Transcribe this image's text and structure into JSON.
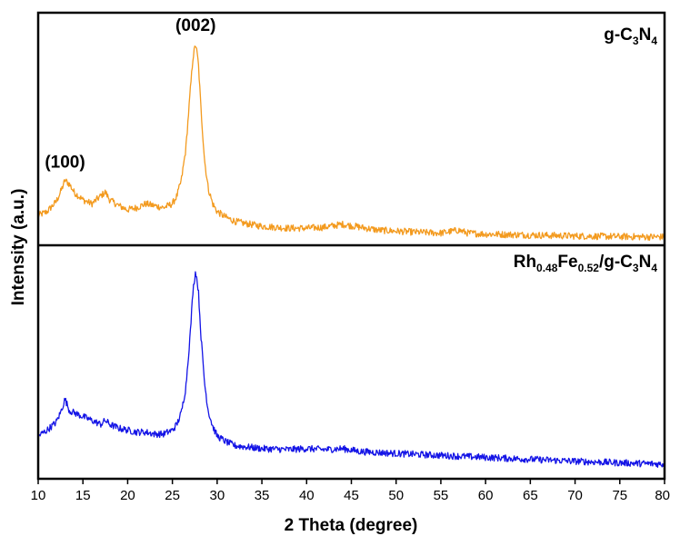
{
  "chart_data": {
    "type": "line",
    "xlabel": "2 Theta (degree)",
    "ylabel": "Intensity (a.u.)",
    "xlim": [
      10,
      80
    ],
    "xticks": [
      10,
      15,
      20,
      25,
      30,
      35,
      40,
      45,
      50,
      55,
      60,
      65,
      70,
      75,
      80
    ],
    "x_tick_labels": [
      "10",
      "15",
      "20",
      "25",
      "30",
      "35",
      "40",
      "45",
      "50",
      "55",
      "60",
      "65",
      "70",
      "75",
      "80"
    ],
    "panels": 2,
    "series": [
      {
        "name_parts": [
          {
            "text": "g-C",
            "sub": false
          },
          {
            "text": "3",
            "sub": true
          },
          {
            "text": "N",
            "sub": false
          },
          {
            "text": "4",
            "sub": true
          }
        ],
        "color": "#F39A1E",
        "panel": "top",
        "x": [
          10,
          11,
          12,
          12.5,
          13,
          13.5,
          14,
          15,
          16,
          17,
          17.5,
          18,
          19,
          20,
          21,
          22,
          23,
          24,
          25,
          25.5,
          26,
          26.5,
          27,
          27.3,
          27.6,
          27.9,
          28.2,
          28.6,
          29,
          29.5,
          30,
          31,
          32,
          33,
          35,
          38,
          40,
          42,
          44,
          46,
          48,
          50,
          52,
          55,
          57,
          58,
          60,
          65,
          70,
          75,
          80
        ],
        "y": [
          0.12,
          0.14,
          0.19,
          0.24,
          0.3,
          0.28,
          0.24,
          0.2,
          0.18,
          0.22,
          0.24,
          0.2,
          0.17,
          0.15,
          0.16,
          0.18,
          0.17,
          0.16,
          0.18,
          0.22,
          0.3,
          0.46,
          0.76,
          0.93,
          1.0,
          0.9,
          0.66,
          0.4,
          0.26,
          0.18,
          0.14,
          0.11,
          0.09,
          0.08,
          0.065,
          0.055,
          0.055,
          0.06,
          0.075,
          0.06,
          0.045,
          0.04,
          0.035,
          0.03,
          0.045,
          0.03,
          0.025,
          0.02,
          0.015,
          0.012,
          0.01
        ],
        "peak_labels": [
          {
            "text": "(100)",
            "x": 13
          },
          {
            "text": "(002)",
            "x": 27.6
          }
        ]
      },
      {
        "name_parts": [
          {
            "text": "Rh",
            "sub": false
          },
          {
            "text": "0.48",
            "sub": true
          },
          {
            "text": "Fe",
            "sub": false
          },
          {
            "text": "0.52",
            "sub": true
          },
          {
            "text": "/g-C",
            "sub": false
          },
          {
            "text": "3",
            "sub": true
          },
          {
            "text": "N",
            "sub": false
          },
          {
            "text": "4",
            "sub": true
          }
        ],
        "color": "#1414E6",
        "panel": "bottom",
        "x": [
          10,
          11,
          12,
          12.5,
          13,
          13.5,
          14,
          15,
          16,
          17,
          17.5,
          18,
          19,
          20,
          21,
          22,
          23,
          24,
          25,
          25.5,
          26,
          26.5,
          27,
          27.3,
          27.6,
          27.9,
          28.2,
          28.6,
          29,
          29.5,
          30,
          31,
          32,
          35,
          38,
          40,
          42,
          44,
          46,
          50,
          55,
          60,
          65,
          70,
          75,
          80
        ],
        "y": [
          0.15,
          0.18,
          0.22,
          0.27,
          0.34,
          0.28,
          0.27,
          0.25,
          0.23,
          0.21,
          0.23,
          0.21,
          0.19,
          0.18,
          0.17,
          0.17,
          0.16,
          0.16,
          0.18,
          0.21,
          0.27,
          0.4,
          0.68,
          0.9,
          1.0,
          0.9,
          0.66,
          0.42,
          0.28,
          0.2,
          0.15,
          0.12,
          0.1,
          0.085,
          0.08,
          0.085,
          0.08,
          0.085,
          0.07,
          0.06,
          0.05,
          0.04,
          0.03,
          0.02,
          0.012,
          0.005
        ]
      }
    ],
    "grid": false,
    "legend": "text labels at top-right of each panel"
  }
}
